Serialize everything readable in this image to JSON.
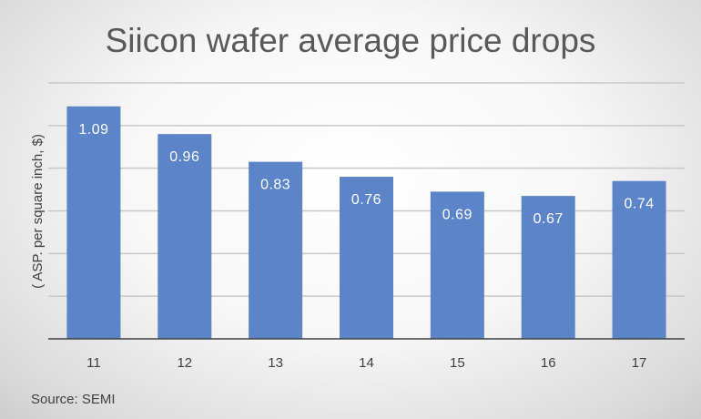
{
  "chart_data": {
    "type": "bar",
    "title": "Siicon wafer average price drops",
    "xlabel": "",
    "ylabel": "( ASP. per square inch, $)",
    "categories": [
      "11",
      "12",
      "13",
      "14",
      "15",
      "16",
      "17"
    ],
    "values": [
      1.09,
      0.96,
      0.83,
      0.76,
      0.69,
      0.67,
      0.74
    ],
    "data_labels": [
      "1.09",
      "0.96",
      "0.83",
      "0.76",
      "0.69",
      "0.67",
      "0.74"
    ],
    "ylim": [
      0,
      1.2
    ],
    "gridlines": [
      0.2,
      0.4,
      0.6,
      0.8,
      1.0,
      1.2
    ],
    "grid": true,
    "y_tick_labels_shown": false,
    "legend": "none",
    "bar_color": "#5b84c9",
    "annotation": "Source: SEMI"
  }
}
